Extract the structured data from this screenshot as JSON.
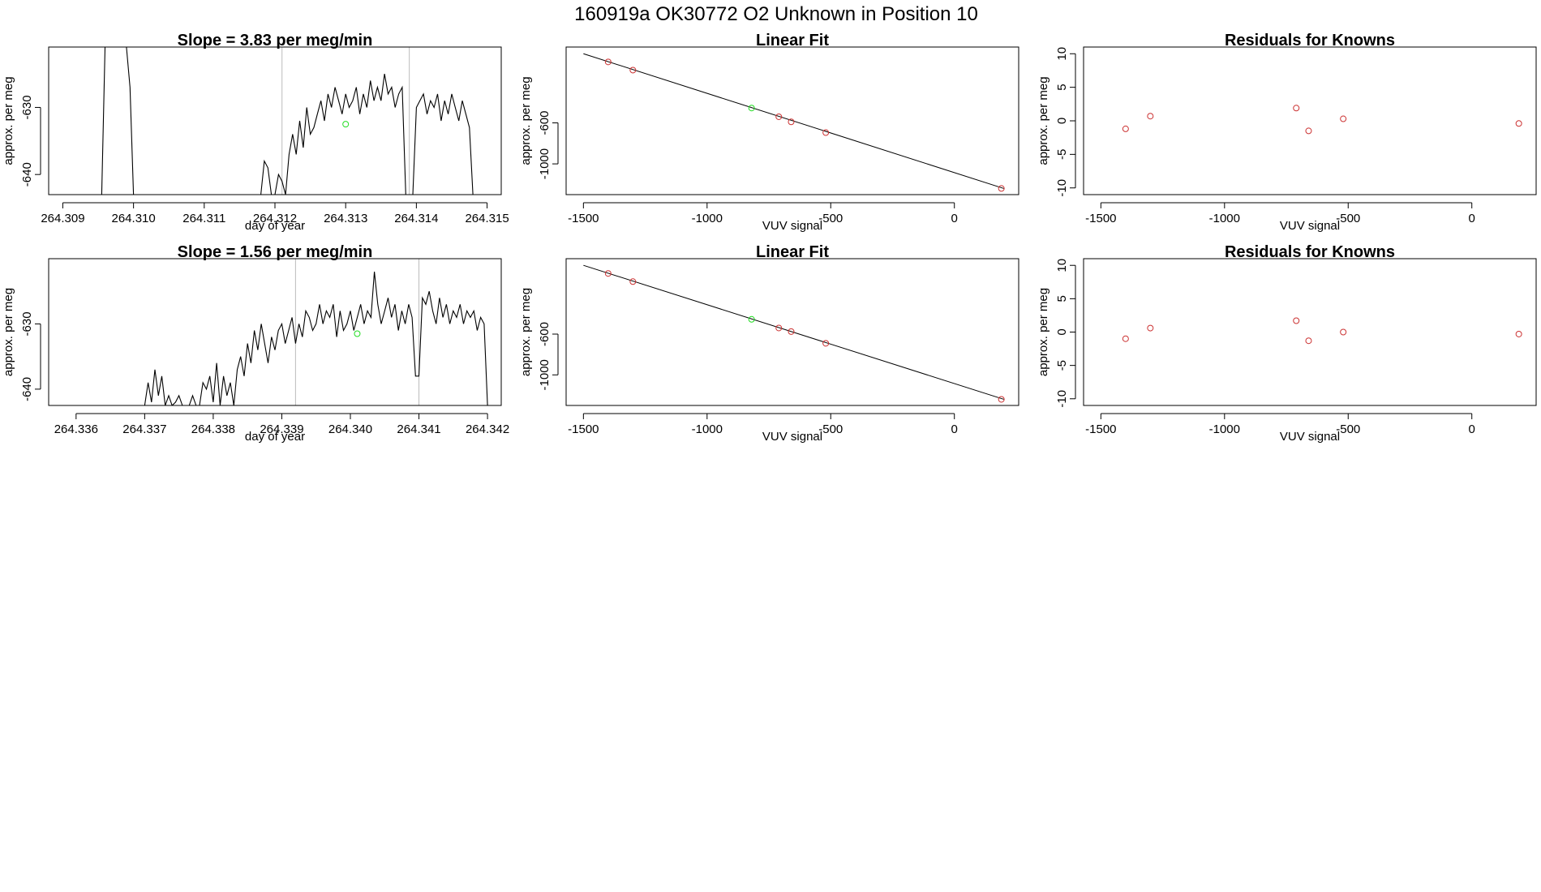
{
  "page_title": "160919a      OK30772   O2 Unknown in Position  10",
  "chart_data": [
    {
      "type": "line",
      "panel": "row1-timeseries",
      "title": "Slope =  3.83  per meg/min",
      "xlabel": "day of year",
      "ylabel": "approx. per meg",
      "xlim": [
        264.3088,
        264.3152
      ],
      "ylim": [
        -643,
        -621
      ],
      "xticks": [
        264.309,
        264.31,
        264.311,
        264.312,
        264.313,
        264.314,
        264.315
      ],
      "xtick_labels": [
        "264.309",
        "264.310",
        "264.311",
        "264.312",
        "264.313",
        "264.314",
        "264.315"
      ],
      "yticks": [
        -640,
        -630
      ],
      "ytick_labels": [
        "-640",
        "-630"
      ],
      "vlines": [
        264.3121,
        264.3139
      ],
      "series": [
        {
          "name": "signal",
          "x": [
            264.30955,
            264.3096,
            264.30965,
            264.3097,
            264.3098,
            264.30985,
            264.3099,
            264.30995,
            264.31,
            264.31005,
            264.31055,
            264.3118,
            264.31185,
            264.3119,
            264.31195,
            264.312,
            264.31205,
            264.3121,
            264.31215,
            264.3122,
            264.31225,
            264.3123,
            264.31235,
            264.3124,
            264.31245,
            264.3125,
            264.31255,
            264.3126,
            264.31265,
            264.3127,
            264.31275,
            264.3128,
            264.31285,
            264.3129,
            264.31295,
            264.313,
            264.31305,
            264.3131,
            264.31315,
            264.3132,
            264.31325,
            264.3133,
            264.31335,
            264.3134,
            264.31345,
            264.3135,
            264.31355,
            264.3136,
            264.31365,
            264.3137,
            264.31375,
            264.3138,
            264.31385,
            264.3139,
            264.31395,
            264.314,
            264.31405,
            264.3141,
            264.31415,
            264.3142,
            264.31425,
            264.3143,
            264.31435,
            264.3144,
            264.31445,
            264.3145,
            264.31455,
            264.3146,
            264.31465,
            264.3147,
            264.31475,
            264.3148
          ],
          "y": [
            -643,
            -620,
            -620,
            -620,
            -620,
            -620,
            -621,
            -627,
            -643,
            -643,
            -643,
            -643,
            -638,
            -639,
            -643,
            -643,
            -640,
            -641,
            -643,
            -637,
            -634,
            -637,
            -632,
            -636,
            -630,
            -634,
            -633,
            -631,
            -629,
            -632,
            -628,
            -630,
            -627,
            -629,
            -631,
            -628,
            -630,
            -629,
            -627,
            -631,
            -628,
            -630,
            -626,
            -629,
            -627,
            -629,
            -625,
            -628,
            -627,
            -630,
            -628,
            -627,
            -643,
            -643,
            -643,
            -630,
            -629,
            -628,
            -631,
            -629,
            -630,
            -628,
            -632,
            -629,
            -631,
            -628,
            -630,
            -632,
            -629,
            -631,
            -633,
            -643
          ]
        },
        {
          "name": "unknown point",
          "x": [
            264.313
          ],
          "y": [
            -632.5
          ]
        }
      ]
    },
    {
      "type": "scatter",
      "panel": "row1-linear-fit",
      "title": "Linear Fit",
      "xlabel": "VUV signal",
      "ylabel": "approx. per meg",
      "xlim": [
        -1570,
        260
      ],
      "ylim": [
        -1300,
        140
      ],
      "xticks": [
        -1500,
        -1000,
        -500,
        0
      ],
      "xtick_labels": [
        "-1500",
        "-1000",
        "-500",
        "0"
      ],
      "yticks": [
        -1000,
        -600
      ],
      "ytick_labels": [
        "-1000",
        "-600"
      ],
      "fit_line": {
        "x": [
          -1500,
          200
        ],
        "y": [
          75,
          -1240
        ]
      },
      "known_points": {
        "x": [
          -1400,
          -1300,
          -710,
          -660,
          -520,
          190
        ],
        "y": [
          -5,
          -85,
          -540,
          -590,
          -695,
          -1240
        ]
      },
      "unknown_point": {
        "x": [
          -820
        ],
        "y": [
          -455
        ]
      }
    },
    {
      "type": "scatter",
      "panel": "row1-residuals",
      "title": "Residuals for Knowns",
      "xlabel": "VUV signal",
      "ylabel": "approx. per meg",
      "xlim": [
        -1570,
        260
      ],
      "ylim": [
        -11,
        11
      ],
      "xticks": [
        -1500,
        -1000,
        -500,
        0
      ],
      "xtick_labels": [
        "-1500",
        "-1000",
        "-500",
        "0"
      ],
      "yticks": [
        -10,
        -5,
        0,
        5,
        10
      ],
      "ytick_labels": [
        "-10",
        "-5",
        "0",
        "5",
        "10"
      ],
      "points": {
        "x": [
          -1400,
          -1300,
          -710,
          -660,
          -520,
          190
        ],
        "y": [
          -1.2,
          0.7,
          1.9,
          -1.5,
          0.3,
          -0.4
        ]
      }
    },
    {
      "type": "line",
      "panel": "row2-timeseries",
      "title": "Slope =  1.56  per meg/min",
      "xlabel": "day of year",
      "ylabel": "approx. per meg",
      "xlim": [
        264.3356,
        264.3422
      ],
      "ylim": [
        -642.5,
        -620
      ],
      "xticks": [
        264.336,
        264.337,
        264.338,
        264.339,
        264.34,
        264.341,
        264.342
      ],
      "xtick_labels": [
        "264.336",
        "264.337",
        "264.338",
        "264.339",
        "264.340",
        "264.341",
        "264.342"
      ],
      "yticks": [
        -640,
        -630
      ],
      "ytick_labels": [
        "-640",
        "-630"
      ],
      "vlines": [
        264.3392,
        264.341
      ],
      "series": [
        {
          "name": "signal",
          "x": [
            264.337,
            264.33705,
            264.3371,
            264.33715,
            264.3372,
            264.33725,
            264.3373,
            264.33735,
            264.3374,
            264.33745,
            264.3375,
            264.33755,
            264.3376,
            264.33765,
            264.3377,
            264.33775,
            264.3378,
            264.33785,
            264.3379,
            264.33795,
            264.338,
            264.33805,
            264.3381,
            264.33815,
            264.3382,
            264.33825,
            264.3383,
            264.33835,
            264.3384,
            264.33845,
            264.3385,
            264.33855,
            264.3386,
            264.33865,
            264.3387,
            264.33875,
            264.3388,
            264.33885,
            264.3389,
            264.33895,
            264.339,
            264.33905,
            264.3391,
            264.33915,
            264.3392,
            264.33925,
            264.3393,
            264.33935,
            264.3394,
            264.33945,
            264.3395,
            264.33955,
            264.3396,
            264.33965,
            264.3397,
            264.33975,
            264.3398,
            264.33985,
            264.3399,
            264.33995,
            264.34,
            264.34005,
            264.3401,
            264.34015,
            264.3402,
            264.34025,
            264.3403,
            264.34035,
            264.3404,
            264.34045,
            264.3405,
            264.34055,
            264.3406,
            264.34065,
            264.3407,
            264.34075,
            264.3408,
            264.34085,
            264.3409,
            264.34095,
            264.341,
            264.34105,
            264.3411,
            264.34115,
            264.3412,
            264.34125,
            264.3413,
            264.34135,
            264.3414,
            264.34145,
            264.3415,
            264.34155,
            264.3416,
            264.34165,
            264.3417,
            264.34175,
            264.3418,
            264.34185,
            264.3419,
            264.34195,
            264.342
          ],
          "y": [
            -642.5,
            -639,
            -642,
            -637,
            -641,
            -638,
            -642.5,
            -641,
            -642.5,
            -642,
            -641,
            -642.5,
            -642.5,
            -642.5,
            -641,
            -642.5,
            -642.5,
            -639,
            -640,
            -638,
            -642,
            -636,
            -642.5,
            -638,
            -641,
            -639,
            -642.5,
            -637,
            -635,
            -638,
            -633,
            -636,
            -631,
            -634,
            -630,
            -633,
            -636,
            -632,
            -634,
            -631,
            -630,
            -633,
            -631,
            -629,
            -633,
            -630,
            -632,
            -628,
            -629,
            -631,
            -630,
            -627,
            -630,
            -628,
            -629,
            -627,
            -632,
            -628,
            -631,
            -630,
            -628,
            -631,
            -629,
            -627,
            -630,
            -628,
            -629,
            -622,
            -627,
            -630,
            -628,
            -626,
            -629,
            -627,
            -631,
            -628,
            -630,
            -627,
            -629,
            -638,
            -638,
            -626,
            -627,
            -625,
            -628,
            -630,
            -626,
            -629,
            -627,
            -630,
            -628,
            -629,
            -627,
            -630,
            -628,
            -629,
            -628,
            -631,
            -629,
            -630,
            -642.5
          ]
        },
        {
          "name": "unknown point",
          "x": [
            264.3401
          ],
          "y": [
            -631.5
          ]
        }
      ]
    },
    {
      "type": "scatter",
      "panel": "row2-linear-fit",
      "title": "Linear Fit",
      "xlabel": "VUV signal",
      "ylabel": "approx. per meg",
      "xlim": [
        -1570,
        260
      ],
      "ylim": [
        -1300,
        140
      ],
      "xticks": [
        -1500,
        -1000,
        -500,
        0
      ],
      "xtick_labels": [
        "-1500",
        "-1000",
        "-500",
        "0"
      ],
      "yticks": [
        -1000,
        -600
      ],
      "ytick_labels": [
        "-1000",
        "-600"
      ],
      "fit_line": {
        "x": [
          -1500,
          200
        ],
        "y": [
          75,
          -1240
        ]
      },
      "known_points": {
        "x": [
          -1400,
          -1300,
          -710,
          -660,
          -520,
          190
        ],
        "y": [
          -5,
          -85,
          -540,
          -575,
          -690,
          -1240
        ]
      },
      "unknown_point": {
        "x": [
          -820
        ],
        "y": [
          -455
        ]
      }
    },
    {
      "type": "scatter",
      "panel": "row2-residuals",
      "title": "Residuals for Knowns",
      "xlabel": "VUV signal",
      "ylabel": "approx. per meg",
      "xlim": [
        -1570,
        260
      ],
      "ylim": [
        -11,
        11
      ],
      "xticks": [
        -1500,
        -1000,
        -500,
        0
      ],
      "xtick_labels": [
        "-1500",
        "-1000",
        "-500",
        "0"
      ],
      "yticks": [
        -10,
        -5,
        0,
        5,
        10
      ],
      "ytick_labels": [
        "-10",
        "-5",
        "0",
        "5",
        "10"
      ],
      "points": {
        "x": [
          -1400,
          -1300,
          -710,
          -660,
          -520,
          190
        ],
        "y": [
          -1.0,
          0.6,
          1.7,
          -1.3,
          0.0,
          -0.3
        ]
      }
    }
  ]
}
